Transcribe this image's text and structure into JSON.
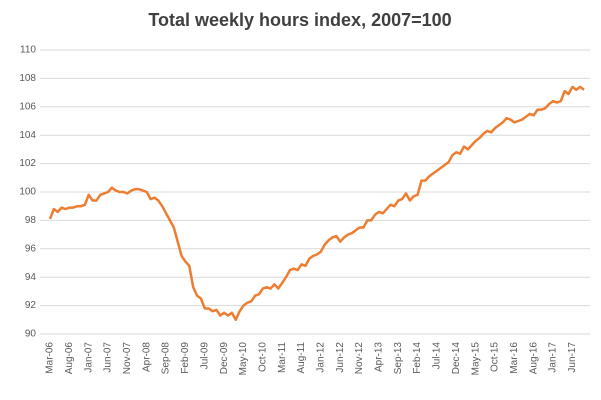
{
  "chart_data": {
    "type": "line",
    "title": "Total weekly hours index, 2007=100",
    "categories": [
      "Mar-06",
      null,
      null,
      null,
      null,
      "Aug-06",
      null,
      null,
      null,
      null,
      "Jan-07",
      null,
      null,
      null,
      null,
      "Jun-07",
      null,
      null,
      null,
      null,
      "Nov-07",
      null,
      null,
      null,
      null,
      "Apr-08",
      null,
      null,
      null,
      null,
      "Sep-08",
      null,
      null,
      null,
      null,
      "Feb-09",
      null,
      null,
      null,
      null,
      "Jul-09",
      null,
      null,
      null,
      null,
      "Dec-09",
      null,
      null,
      null,
      null,
      "May-10",
      null,
      null,
      null,
      null,
      "Oct-10",
      null,
      null,
      null,
      null,
      "Mar-11",
      null,
      null,
      null,
      null,
      "Aug-11",
      null,
      null,
      null,
      null,
      "Jan-12",
      null,
      null,
      null,
      null,
      "Jun-12",
      null,
      null,
      null,
      null,
      "Nov-12",
      null,
      null,
      null,
      null,
      "Apr-13",
      null,
      null,
      null,
      null,
      "Sep-13",
      null,
      null,
      null,
      null,
      "Feb-14",
      null,
      null,
      null,
      null,
      "Jul-14",
      null,
      null,
      null,
      null,
      "Dec-14",
      null,
      null,
      null,
      null,
      "May-15",
      null,
      null,
      null,
      null,
      "Oct-15",
      null,
      null,
      null,
      null,
      "Mar-16",
      null,
      null,
      null,
      null,
      "Aug-16",
      null,
      null,
      null,
      null,
      "Jan-17",
      null,
      null,
      null,
      null,
      "Jun-17",
      null,
      null,
      null
    ],
    "values": [
      98.1,
      98.8,
      98.6,
      98.9,
      98.8,
      98.9,
      98.9,
      99.0,
      99.0,
      99.1,
      99.8,
      99.4,
      99.4,
      99.8,
      99.9,
      100.0,
      100.3,
      100.1,
      100.0,
      100.0,
      99.9,
      100.1,
      100.2,
      100.2,
      100.1,
      100.0,
      99.5,
      99.6,
      99.4,
      99.0,
      98.5,
      98.0,
      97.5,
      96.5,
      95.5,
      95.1,
      94.8,
      93.3,
      92.7,
      92.5,
      91.8,
      91.8,
      91.6,
      91.7,
      91.3,
      91.5,
      91.3,
      91.5,
      91.0,
      91.6,
      92.0,
      92.2,
      92.3,
      92.7,
      92.8,
      93.2,
      93.3,
      93.2,
      93.5,
      93.2,
      93.6,
      94.0,
      94.5,
      94.6,
      94.5,
      94.9,
      94.8,
      95.3,
      95.5,
      95.6,
      95.8,
      96.3,
      96.6,
      96.8,
      96.9,
      96.5,
      96.8,
      97.0,
      97.1,
      97.3,
      97.5,
      97.5,
      98.0,
      98.0,
      98.4,
      98.6,
      98.5,
      98.8,
      99.1,
      99.0,
      99.4,
      99.5,
      99.9,
      99.4,
      99.7,
      99.8,
      100.8,
      100.8,
      101.1,
      101.3,
      101.5,
      101.7,
      101.9,
      102.1,
      102.6,
      102.8,
      102.7,
      103.2,
      103.0,
      103.3,
      103.6,
      103.8,
      104.1,
      104.3,
      104.2,
      104.5,
      104.7,
      104.9,
      105.2,
      105.1,
      104.9,
      105.0,
      105.1,
      105.3,
      105.5,
      105.4,
      105.8,
      105.8,
      105.9,
      106.2,
      106.4,
      106.3,
      106.4,
      107.1,
      106.9,
      107.4,
      107.2,
      107.4,
      107.2
    ],
    "color": "#ed7d31",
    "ylim": [
      90,
      110
    ],
    "yticks": [
      90,
      92,
      94,
      96,
      98,
      100,
      102,
      104,
      106,
      108,
      110
    ],
    "grid": true
  }
}
